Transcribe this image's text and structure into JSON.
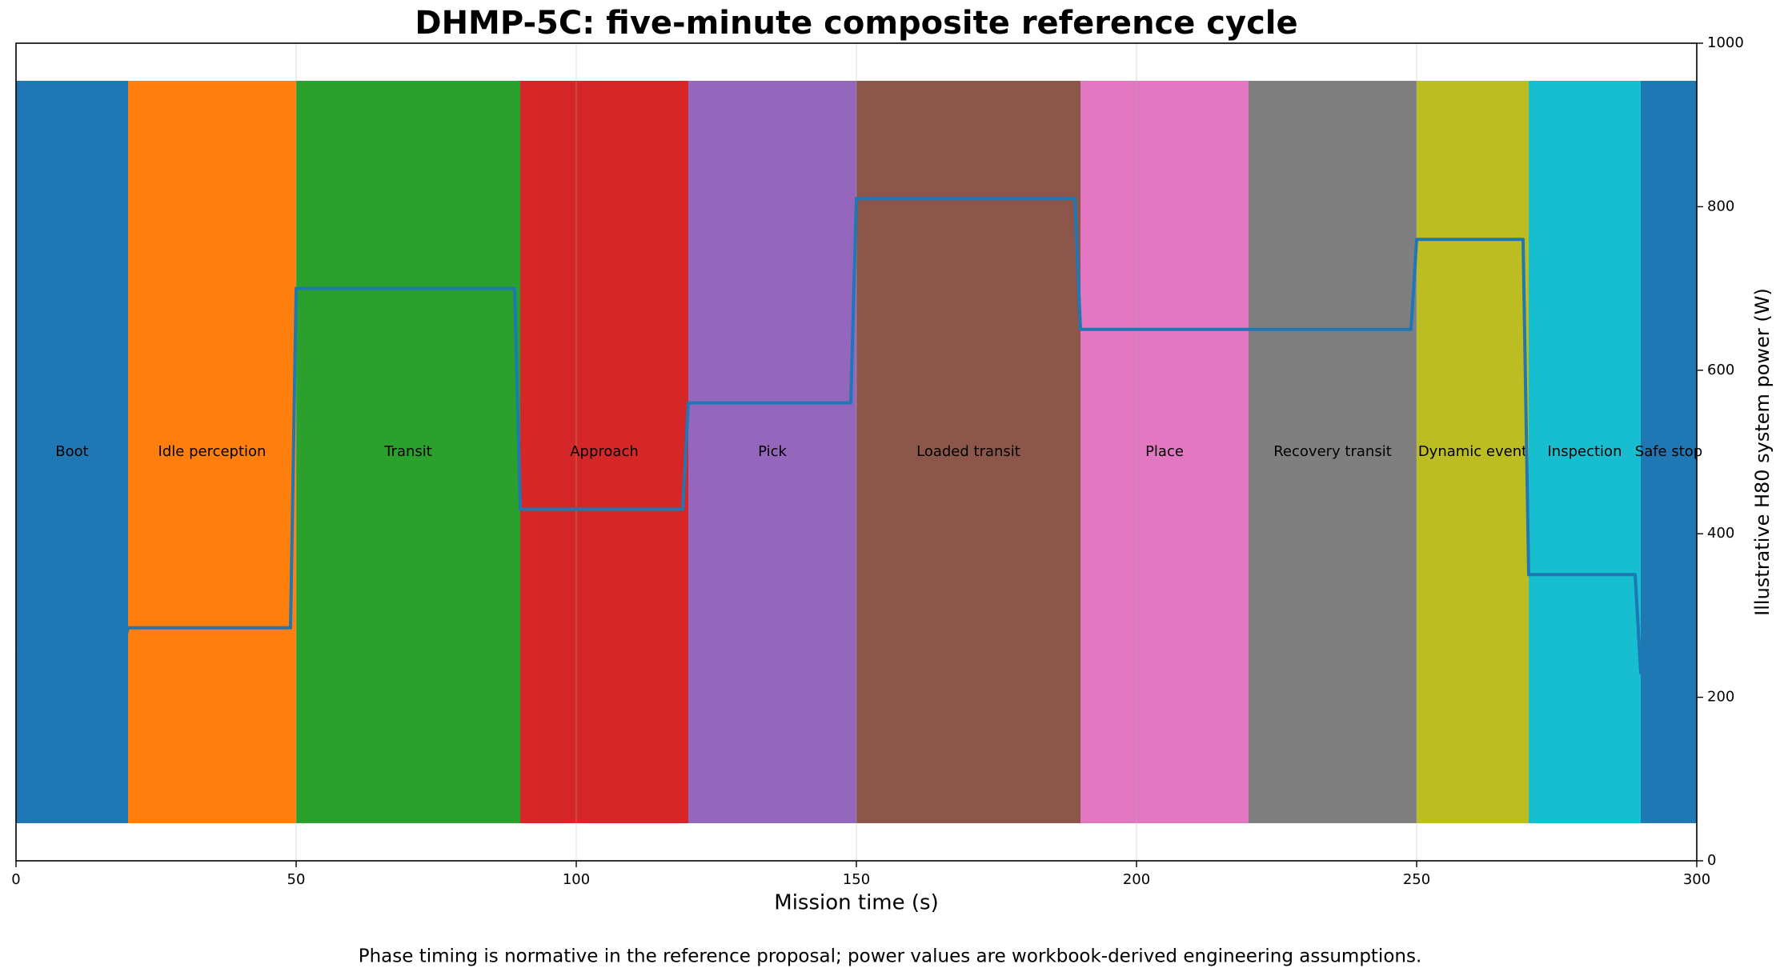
{
  "chart_data": {
    "type": "phase-step",
    "title": "DHMP-5C: five-minute composite reference cycle",
    "xlabel": "Mission time (s)",
    "y2label": "Illustrative H80 system power (W)",
    "caption": "Phase timing is normative in the reference proposal; power values are workbook-derived engineering assumptions.",
    "phases": [
      {
        "name": "Boot",
        "start": 0,
        "end": 20,
        "color": "#1f77b4"
      },
      {
        "name": "Idle perception",
        "start": 20,
        "end": 50,
        "color": "#ff7f0e"
      },
      {
        "name": "Transit",
        "start": 50,
        "end": 90,
        "color": "#2ca02c"
      },
      {
        "name": "Approach",
        "start": 90,
        "end": 120,
        "color": "#d62728"
      },
      {
        "name": "Pick",
        "start": 120,
        "end": 150,
        "color": "#9467bd"
      },
      {
        "name": "Loaded transit",
        "start": 150,
        "end": 190,
        "color": "#8c564b"
      },
      {
        "name": "Place",
        "start": 190,
        "end": 220,
        "color": "#e377c2"
      },
      {
        "name": "Recovery transit",
        "start": 220,
        "end": 250,
        "color": "#7f7f7f"
      },
      {
        "name": "Dynamic event",
        "start": 250,
        "end": 270,
        "color": "#bcbd22"
      },
      {
        "name": "Inspection",
        "start": 270,
        "end": 290,
        "color": "#17becf"
      },
      {
        "name": "Safe stop",
        "start": 290,
        "end": 300,
        "color": "#1f77b4"
      }
    ],
    "series": [
      {
        "axis": "y2",
        "color": "#1f77b4",
        "x": [
          0,
          19,
          20,
          49,
          50,
          89,
          90,
          119,
          120,
          149,
          150,
          189,
          190,
          249,
          250,
          269,
          270,
          289,
          290,
          300
        ],
        "values": [
          260,
          260,
          285,
          285,
          700,
          700,
          430,
          430,
          560,
          560,
          810,
          810,
          650,
          650,
          760,
          760,
          350,
          350,
          230,
          230
        ]
      }
    ],
    "xlim": [
      0,
      300
    ],
    "xticks": [
      0,
      50,
      100,
      150,
      200,
      250,
      300
    ],
    "y2lim": [
      0,
      1000
    ],
    "y2ticks": [
      0,
      200,
      400,
      600,
      800,
      1000
    ],
    "grid": true
  }
}
